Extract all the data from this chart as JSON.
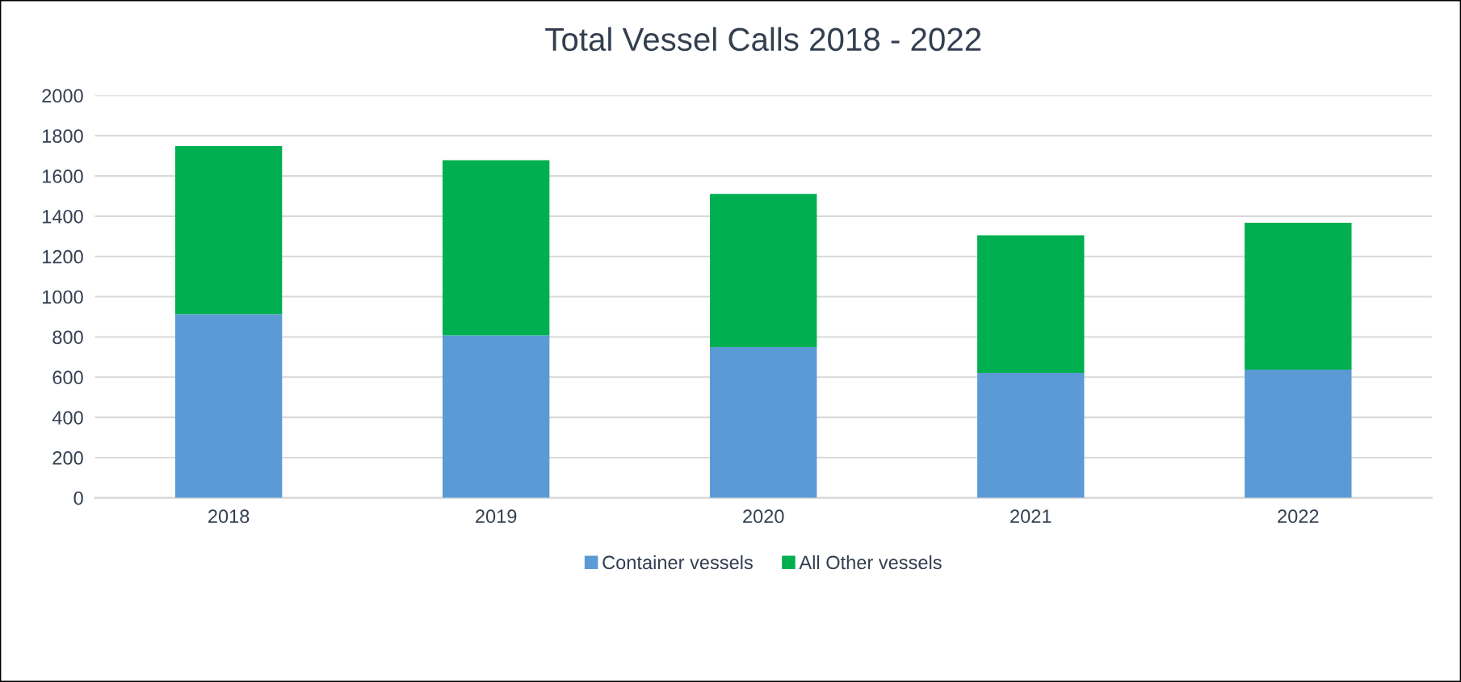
{
  "chart_data": {
    "type": "bar",
    "title": "Total Vessel Calls 2018 - 2022",
    "categories": [
      "2018",
      "2019",
      "2020",
      "2021",
      "2022"
    ],
    "series": [
      {
        "name": "Container vessels",
        "color": "#5b9bd5",
        "values": [
          913,
          808,
          750,
          621,
          637
        ]
      },
      {
        "name": "All Other vessels",
        "color": "#00b050",
        "values": [
          835,
          870,
          761,
          684,
          730
        ]
      }
    ],
    "stacked": true,
    "ylim": [
      0,
      2000
    ],
    "yticks": [
      0,
      200,
      400,
      600,
      800,
      1000,
      1200,
      1400,
      1600,
      1800,
      2000
    ],
    "grid": "y",
    "legend": "bottom"
  }
}
